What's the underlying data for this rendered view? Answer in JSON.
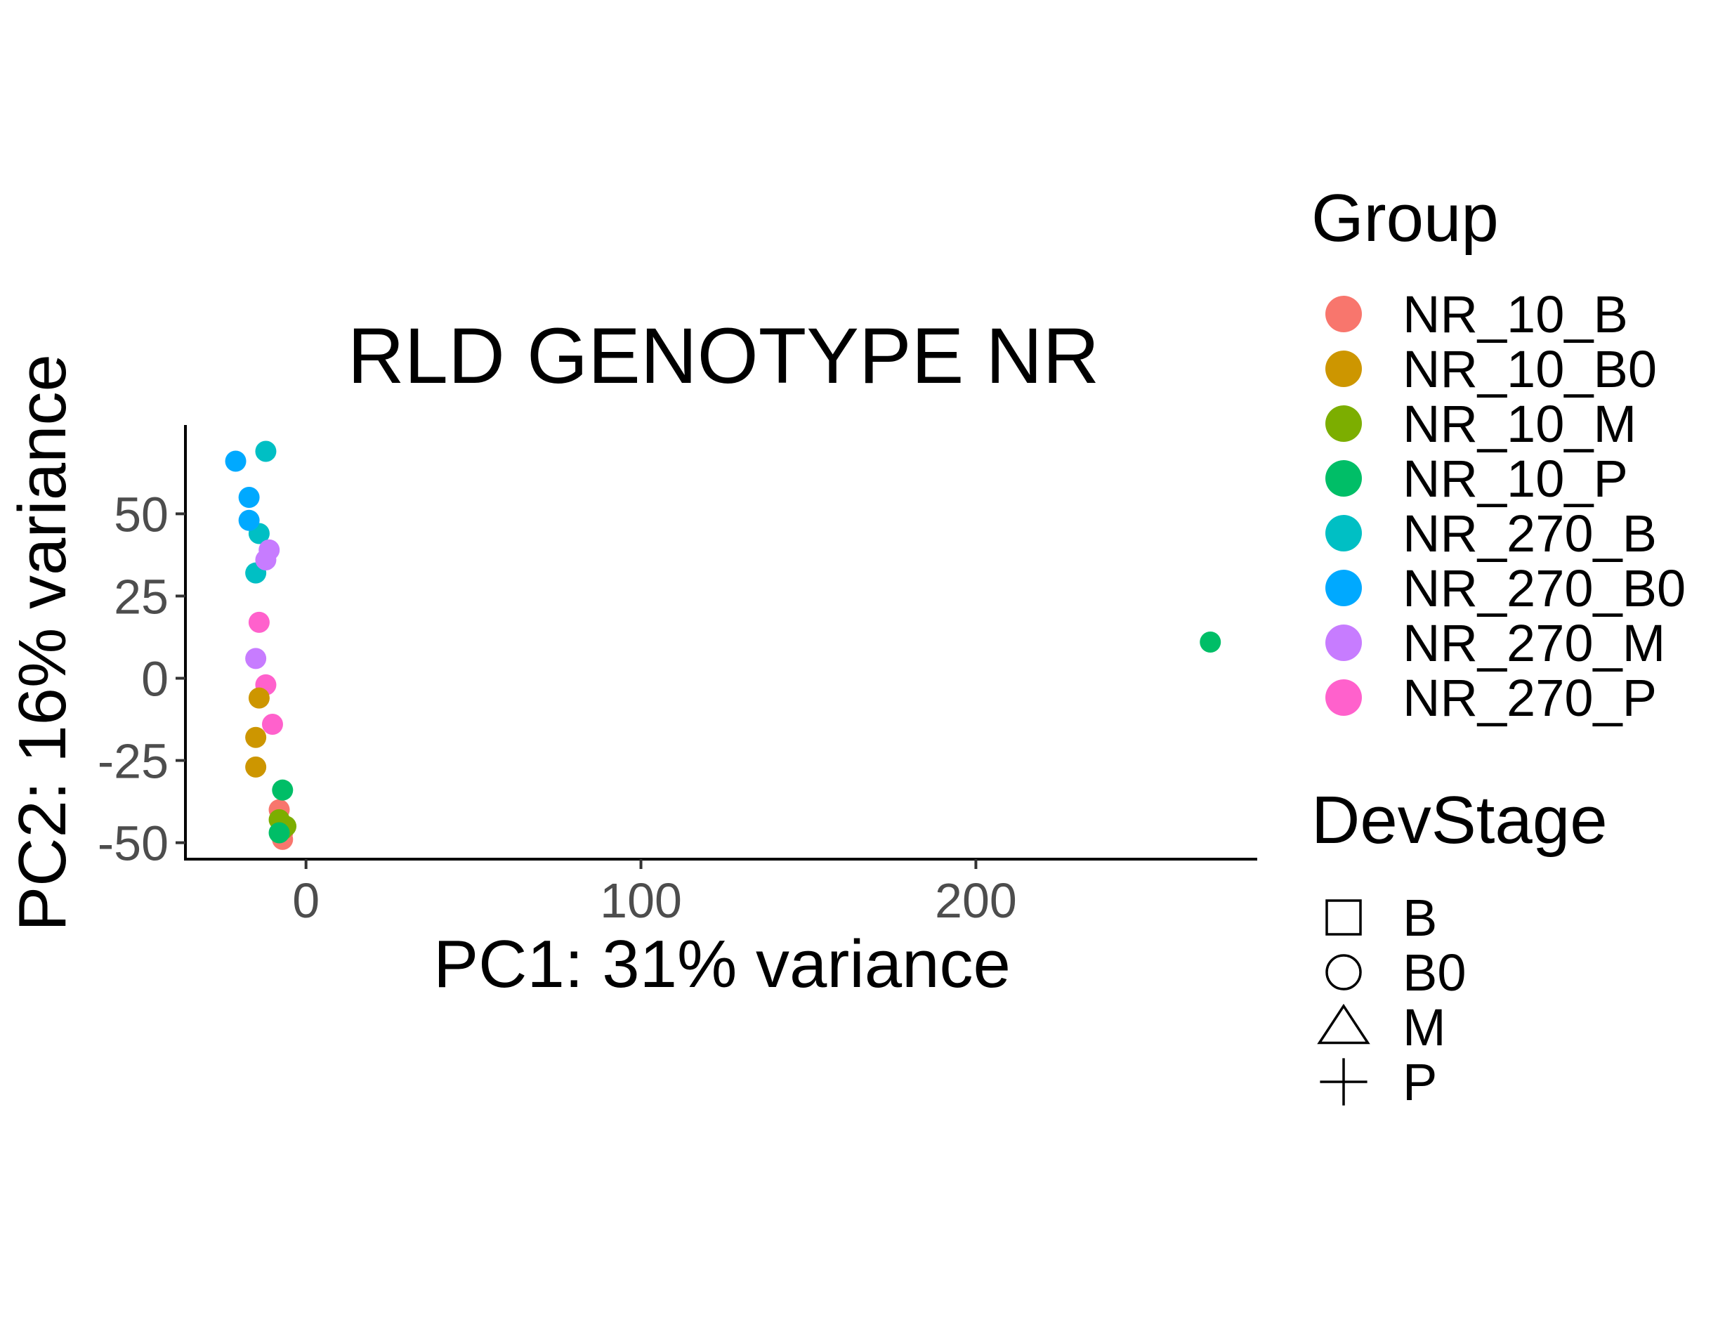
{
  "chart_data": {
    "type": "scatter",
    "title": "RLD GENOTYPE NR",
    "xlabel": "PC1: 31% variance",
    "ylabel": "PC2: 16% variance",
    "xlim": [
      -36,
      284
    ],
    "ylim": [
      -55,
      77
    ],
    "x_ticks": [
      0,
      100,
      200
    ],
    "x_tick_labels": [
      "0",
      "100",
      "200"
    ],
    "y_ticks": [
      -50,
      -25,
      0,
      25,
      50
    ],
    "y_tick_labels": [
      "-50",
      "-25",
      "0",
      "25",
      "50"
    ],
    "grid": false,
    "legend_position": "right",
    "legend_group": {
      "title": "Group",
      "entries": [
        {
          "name": "NR_10_B",
          "color": "#F8766D"
        },
        {
          "name": "NR_10_B0",
          "color": "#CD9600"
        },
        {
          "name": "NR_10_M",
          "color": "#7CAE00"
        },
        {
          "name": "NR_10_P",
          "color": "#00BE67"
        },
        {
          "name": "NR_270_B",
          "color": "#00BFC4"
        },
        {
          "name": "NR_270_B0",
          "color": "#00A9FF"
        },
        {
          "name": "NR_270_M",
          "color": "#C77CFF"
        },
        {
          "name": "NR_270_P",
          "color": "#FF61CC"
        }
      ]
    },
    "legend_devstage": {
      "title": "DevStage",
      "entries": [
        {
          "name": "B",
          "shape": "square"
        },
        {
          "name": "B0",
          "shape": "circle"
        },
        {
          "name": "M",
          "shape": "triangle"
        },
        {
          "name": "P",
          "shape": "plus"
        }
      ]
    },
    "points": [
      {
        "x": -12,
        "y": 69,
        "group": "NR_270_B",
        "stage": "B"
      },
      {
        "x": -14,
        "y": 44,
        "group": "NR_270_B",
        "stage": "B"
      },
      {
        "x": -15,
        "y": 32,
        "group": "NR_270_B",
        "stage": "B"
      },
      {
        "x": -21,
        "y": 66,
        "group": "NR_270_B0",
        "stage": "B0"
      },
      {
        "x": -17,
        "y": 55,
        "group": "NR_270_B0",
        "stage": "B0"
      },
      {
        "x": -17,
        "y": 48,
        "group": "NR_270_B0",
        "stage": "B0"
      },
      {
        "x": -11,
        "y": 39,
        "group": "NR_270_M",
        "stage": "M"
      },
      {
        "x": -12,
        "y": 36,
        "group": "NR_270_M",
        "stage": "M"
      },
      {
        "x": -15,
        "y": 6,
        "group": "NR_270_M",
        "stage": "M"
      },
      {
        "x": -14,
        "y": 17,
        "group": "NR_270_P",
        "stage": "P"
      },
      {
        "x": -12,
        "y": -2,
        "group": "NR_270_P",
        "stage": "P"
      },
      {
        "x": -10,
        "y": -14,
        "group": "NR_270_P",
        "stage": "P"
      },
      {
        "x": -14,
        "y": -6,
        "group": "NR_10_B0",
        "stage": "B0"
      },
      {
        "x": -15,
        "y": -18,
        "group": "NR_10_B0",
        "stage": "B0"
      },
      {
        "x": -15,
        "y": -27,
        "group": "NR_10_B0",
        "stage": "B0"
      },
      {
        "x": -8,
        "y": -40,
        "group": "NR_10_B",
        "stage": "B"
      },
      {
        "x": -7,
        "y": -47,
        "group": "NR_10_B",
        "stage": "B"
      },
      {
        "x": -7,
        "y": -49,
        "group": "NR_10_B",
        "stage": "B"
      },
      {
        "x": -8,
        "y": -43,
        "group": "NR_10_M",
        "stage": "M"
      },
      {
        "x": -6,
        "y": -45,
        "group": "NR_10_M",
        "stage": "M"
      },
      {
        "x": -7,
        "y": -46,
        "group": "NR_10_M",
        "stage": "M"
      },
      {
        "x": -7,
        "y": -34,
        "group": "NR_10_P",
        "stage": "P"
      },
      {
        "x": -8,
        "y": -47,
        "group": "NR_10_P",
        "stage": "P"
      },
      {
        "x": 270,
        "y": 11,
        "group": "NR_10_P",
        "stage": "P"
      }
    ]
  }
}
